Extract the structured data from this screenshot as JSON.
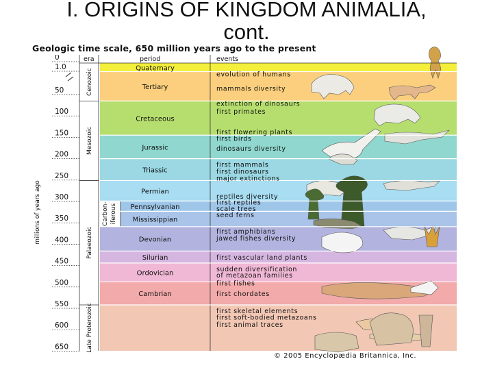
{
  "slide": {
    "title_line1": "I.  ORIGINS OF KINGDOM ANIMALIA,",
    "title_line2": "cont."
  },
  "figure": {
    "title": "Geologic time scale, 650 million years ago to the present",
    "y_axis_label": "millions of years ago",
    "headers": {
      "era": "era",
      "period": "period",
      "events": "events"
    },
    "copyright": "© 2005 Encyclopædia Britannica, Inc.",
    "tick_labels": [
      {
        "label": "0",
        "value": 0
      },
      {
        "label": "1.0",
        "value": 1
      },
      {
        "label": "50",
        "value": 50
      },
      {
        "label": "100",
        "value": 100
      },
      {
        "label": "150",
        "value": 150
      },
      {
        "label": "200",
        "value": 200
      },
      {
        "label": "250",
        "value": 250
      },
      {
        "label": "300",
        "value": 300
      },
      {
        "label": "350",
        "value": 350
      },
      {
        "label": "400",
        "value": 400
      },
      {
        "label": "450",
        "value": 450
      },
      {
        "label": "500",
        "value": 500
      },
      {
        "label": "550",
        "value": 550
      },
      {
        "label": "600",
        "value": 600
      },
      {
        "label": "650",
        "value": 650
      }
    ],
    "eras": [
      {
        "name": "Cenozoic",
        "start": 0,
        "end": 65
      },
      {
        "name": "Mesozoic",
        "start": 65,
        "end": 251
      },
      {
        "name": "Palaeozoic",
        "start": 251,
        "end": 542
      },
      {
        "name": "Late Proterozoic",
        "start": 542,
        "end": 650
      }
    ],
    "carboniferous_label": {
      "line1": "Carbon-",
      "line2": "iferous",
      "start": 299,
      "end": 359
    },
    "periods": [
      {
        "name": "Quaternary",
        "start": 0,
        "end": 1.8,
        "color": "#f3ef3b"
      },
      {
        "name": "Tertiary",
        "start": 1.8,
        "end": 65,
        "color": "#fbcf7d"
      },
      {
        "name": "Cretaceous",
        "start": 65,
        "end": 145,
        "color": "#b6de6e"
      },
      {
        "name": "Jurassic",
        "start": 145,
        "end": 200,
        "color": "#8fd7cf"
      },
      {
        "name": "Triassic",
        "start": 200,
        "end": 251,
        "color": "#9bd8e3"
      },
      {
        "name": "Permian",
        "start": 251,
        "end": 299,
        "color": "#a8ddf2"
      },
      {
        "name": "Pennsylvanian",
        "start": 299,
        "end": 323,
        "color": "#9ec6e8"
      },
      {
        "name": "Mississippian",
        "start": 323,
        "end": 359,
        "color": "#a9c4e8"
      },
      {
        "name": "Devonian",
        "start": 359,
        "end": 416,
        "color": "#b3b3df"
      },
      {
        "name": "Silurian",
        "start": 416,
        "end": 444,
        "color": "#d5b6e0"
      },
      {
        "name": "Ordovician",
        "start": 444,
        "end": 488,
        "color": "#f0b8d4"
      },
      {
        "name": "Cambrian",
        "start": 488,
        "end": 542,
        "color": "#f2aaaa"
      },
      {
        "name": "",
        "start": 542,
        "end": 650,
        "color": "#f2c7b4"
      }
    ],
    "events": [
      {
        "text": "evolution of humans",
        "at": 2
      },
      {
        "text": "mammals diversity",
        "at": 32
      },
      {
        "text": "extinction of dinosaurs",
        "at": 65
      },
      {
        "text": "first primates",
        "at": 84
      },
      {
        "text": "first flowering plants",
        "at": 132
      },
      {
        "text": "first birds",
        "at": 147
      },
      {
        "text": "dinosaurs diversity",
        "at": 170
      },
      {
        "text": "first mammals",
        "at": 208
      },
      {
        "text": "first dinosaurs",
        "at": 224
      },
      {
        "text": "major extinctions",
        "at": 240
      },
      {
        "text": "reptiles diversity",
        "at": 282
      },
      {
        "text": "first reptiles",
        "at": 296
      },
      {
        "text": "scale trees",
        "at": 311
      },
      {
        "text": "seed ferns",
        "at": 326
      },
      {
        "text": "first amphibians",
        "at": 364
      },
      {
        "text": "jawed fishes diversity",
        "at": 380
      },
      {
        "text": "first vascular land plants",
        "at": 425
      },
      {
        "text": "sudden diversification",
        "at": 452
      },
      {
        "text": "of metazoan families",
        "at": 467
      },
      {
        "text": "first fishes",
        "at": 485
      },
      {
        "text": "first chordates",
        "at": 510
      },
      {
        "text": "first skeletal elements",
        "at": 550
      },
      {
        "text": "first soft-bodied metazoans",
        "at": 565
      },
      {
        "text": "first animal traces",
        "at": 582
      }
    ]
  }
}
